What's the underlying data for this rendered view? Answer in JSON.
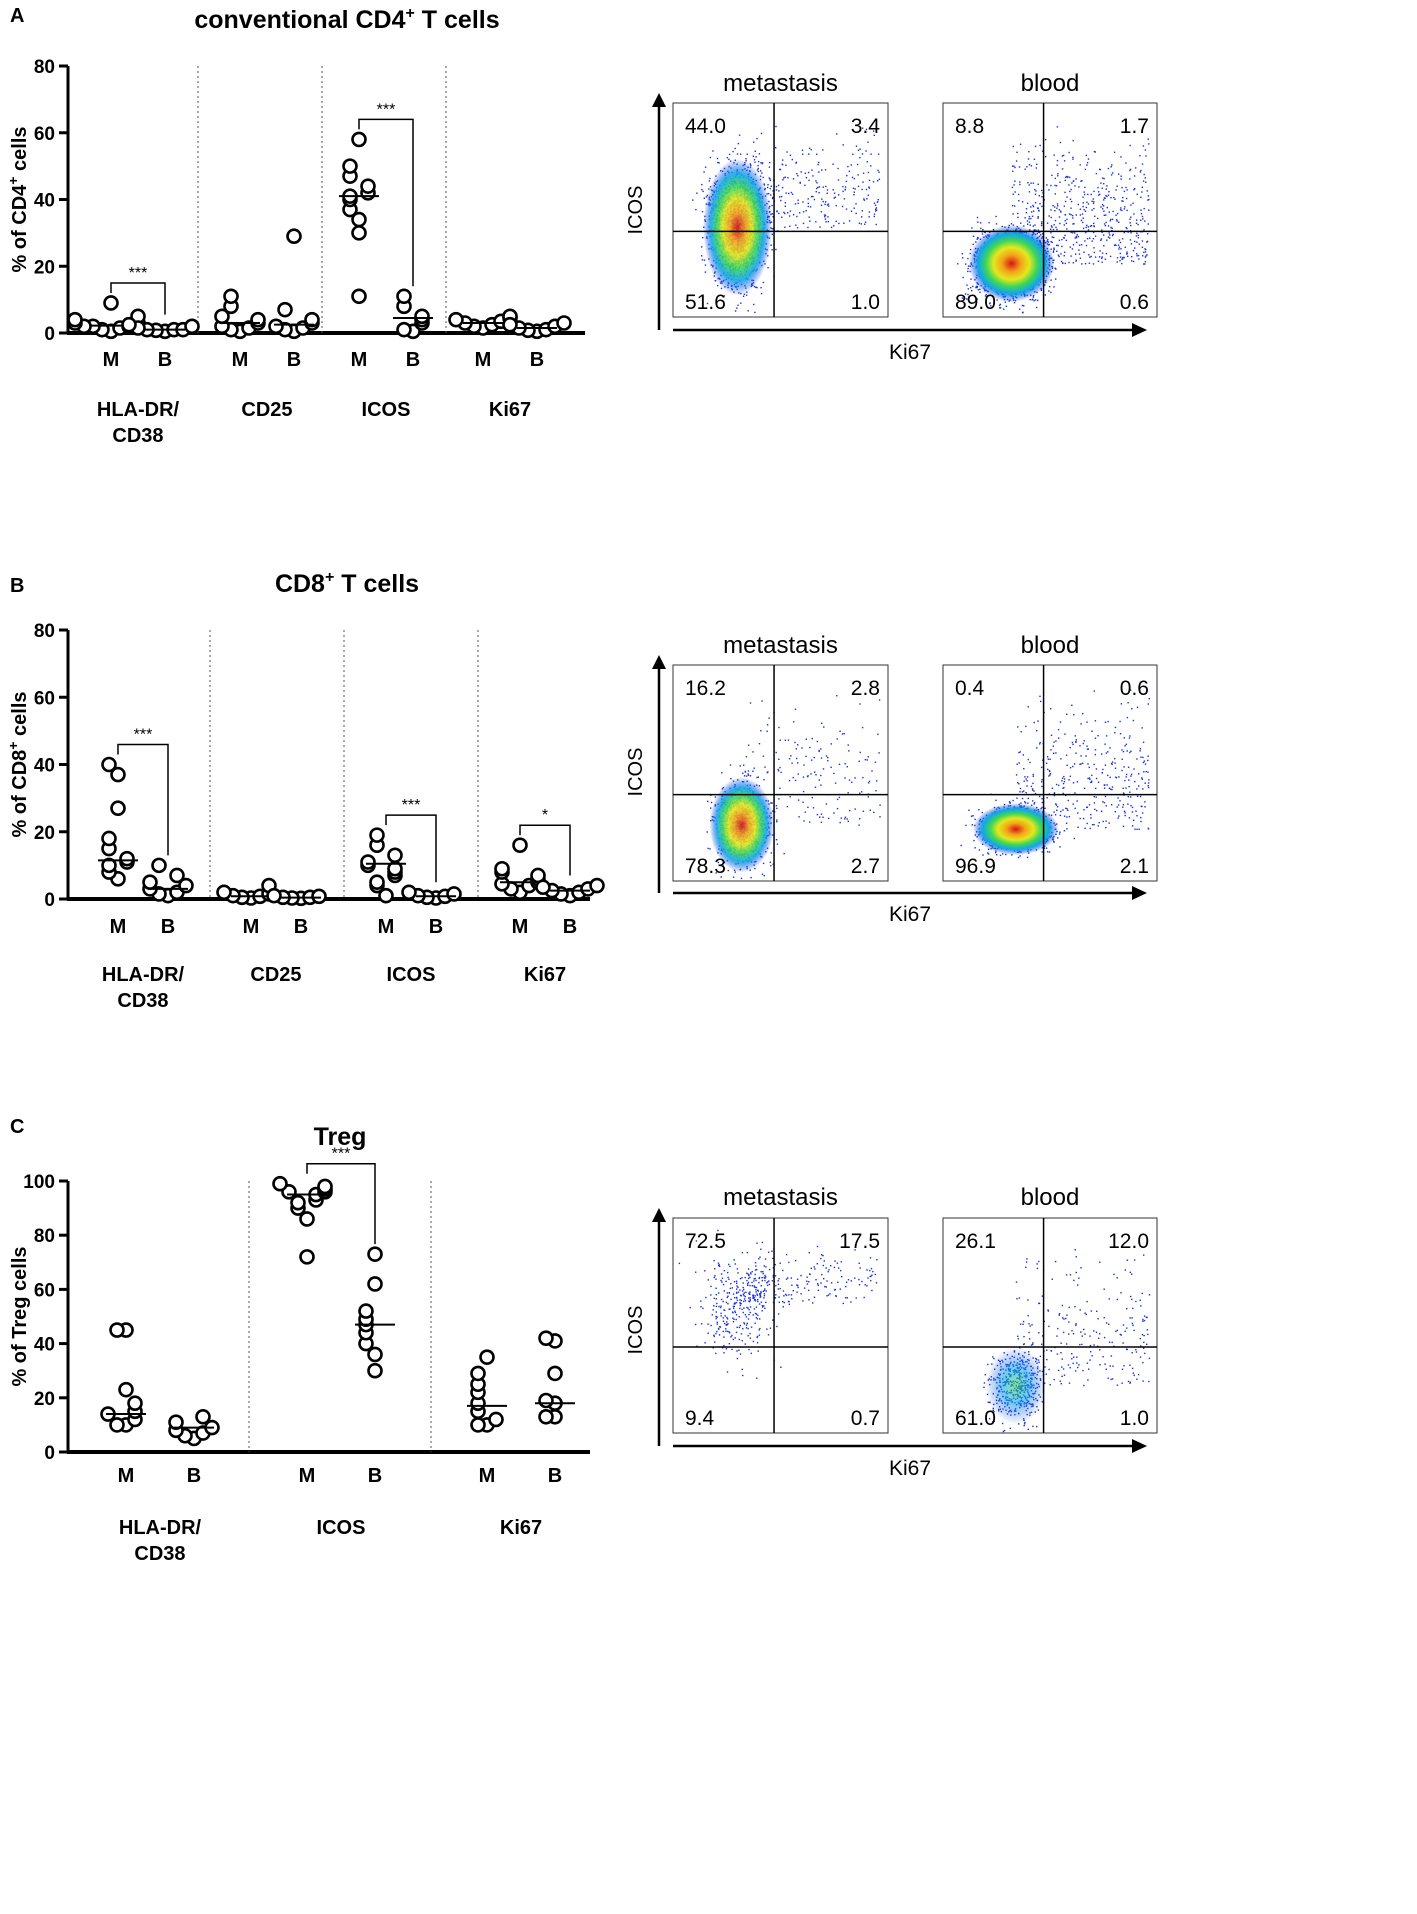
{
  "chart_data": [
    {
      "type": "scatter",
      "panel_label": "A",
      "title": "conventional CD4",
      "title_sup": "+",
      "title_after": " T cells",
      "ylabel_pre": "% of CD4",
      "ylabel_sup": "+",
      "ylabel_post": " cells",
      "ylim": [
        0,
        80
      ],
      "yticks": [
        "0",
        "20",
        "40",
        "60",
        "80"
      ],
      "group_labels": [
        "M",
        "B"
      ],
      "categories": [
        {
          "label_lines": [
            "HLA-DR/",
            "CD38"
          ],
          "M": [
            9,
            5,
            4,
            3,
            3,
            2,
            2,
            2,
            1.5,
            1,
            0.5
          ],
          "B": [
            2.5,
            2,
            1.5,
            1,
            1,
            1,
            0.8,
            0.5
          ],
          "median_M": 2.2,
          "median_B": 1.0,
          "sig": "***"
        },
        {
          "label_lines": [
            "CD25"
          ],
          "M": [
            11,
            8,
            5,
            4,
            3,
            2,
            1.5,
            1,
            0.5
          ],
          "B": [
            29,
            7,
            4,
            3,
            2,
            1.5,
            1,
            0.5
          ],
          "median_M": 3.0,
          "median_B": 2.5,
          "sig": ""
        },
        {
          "label_lines": [
            "ICOS"
          ],
          "M": [
            58,
            50,
            47,
            44,
            42,
            41,
            40,
            37,
            34,
            30,
            11
          ],
          "B": [
            11,
            8,
            5,
            4,
            3,
            1,
            0.5
          ],
          "median_M": 41,
          "median_B": 4.5,
          "sig": "***"
        },
        {
          "label_lines": [
            "Ki67"
          ],
          "M": [
            5,
            4.5,
            4,
            3.5,
            3,
            2.5,
            2,
            1.5
          ],
          "B": [
            3,
            2.5,
            2,
            1.5,
            1,
            0.8,
            0.5
          ],
          "median_M": 3.0,
          "median_B": 1.5,
          "sig": ""
        }
      ],
      "flow_plots": [
        {
          "title": "metastasis",
          "quadrants": {
            "top_left": "44.0",
            "top_right": "3.4",
            "bottom_left": "51.6",
            "bottom_right": "1.0"
          }
        },
        {
          "title": "blood",
          "quadrants": {
            "top_left": "8.8",
            "top_right": "1.7",
            "bottom_left": "89.0",
            "bottom_right": "0.6"
          }
        }
      ],
      "flow_y_axis": "ICOS",
      "flow_x_axis": "Ki67"
    },
    {
      "type": "scatter",
      "panel_label": "B",
      "title": "CD8",
      "title_sup": "+",
      "title_after": " T cells",
      "ylabel_pre": "% of CD8",
      "ylabel_sup": "+",
      "ylabel_post": " cells",
      "ylim": [
        0,
        80
      ],
      "yticks": [
        "0",
        "20",
        "40",
        "60",
        "80"
      ],
      "group_labels": [
        "M",
        "B"
      ],
      "categories": [
        {
          "label_lines": [
            "HLA-DR/",
            "CD38"
          ],
          "M": [
            40,
            37,
            27,
            18,
            15,
            12,
            11,
            10,
            8,
            6
          ],
          "B": [
            10,
            7,
            5,
            4,
            3,
            2,
            1.5,
            1
          ],
          "median_M": 11.5,
          "median_B": 3.0,
          "sig": "***"
        },
        {
          "label_lines": [
            "CD25"
          ],
          "M": [
            4,
            2,
            1.5,
            1,
            0.8,
            0.5,
            0.3
          ],
          "B": [
            1,
            0.8,
            0.5,
            0.5,
            0.3,
            0.2
          ],
          "median_M": 0.8,
          "median_B": 0.4,
          "sig": ""
        },
        {
          "label_lines": [
            "ICOS"
          ],
          "M": [
            19,
            16,
            13,
            11,
            10,
            9,
            8,
            7,
            5,
            4,
            1
          ],
          "B": [
            2,
            1.5,
            1,
            0.8,
            0.5,
            0.3
          ],
          "median_M": 10.5,
          "median_B": 0.8,
          "sig": "***"
        },
        {
          "label_lines": [
            "Ki67"
          ],
          "M": [
            16,
            9,
            8,
            7,
            6,
            5,
            4.5,
            4,
            3,
            2
          ],
          "B": [
            4,
            3.5,
            3,
            2.5,
            2,
            1.5,
            1
          ],
          "median_M": 5.0,
          "median_B": 2.5,
          "sig": "*"
        }
      ],
      "flow_plots": [
        {
          "title": "metastasis",
          "quadrants": {
            "top_left": "16.2",
            "top_right": "2.8",
            "bottom_left": "78.3",
            "bottom_right": "2.7"
          }
        },
        {
          "title": "blood",
          "quadrants": {
            "top_left": "0.4",
            "top_right": "0.6",
            "bottom_left": "96.9",
            "bottom_right": "2.1"
          }
        }
      ],
      "flow_y_axis": "ICOS",
      "flow_x_axis": "Ki67"
    },
    {
      "type": "scatter",
      "panel_label": "C",
      "title": "Treg",
      "title_sup": "",
      "title_after": "",
      "ylabel_pre": "% of Treg cells",
      "ylabel_sup": "",
      "ylabel_post": "",
      "ylim": [
        0,
        100
      ],
      "yticks": [
        "0",
        "20",
        "40",
        "60",
        "80",
        "100"
      ],
      "group_labels": [
        "M",
        "B"
      ],
      "categories": [
        {
          "label_lines": [
            "HLA-DR/",
            "CD38"
          ],
          "M": [
            45,
            45,
            23,
            18,
            15,
            14,
            12,
            10,
            10
          ],
          "B": [
            13,
            11,
            9,
            8,
            7,
            6,
            5
          ],
          "median_M": 14,
          "median_B": 9,
          "sig": ""
        },
        {
          "label_lines": [
            "ICOS"
          ],
          "M": [
            99,
            98,
            97,
            96,
            96,
            95,
            93,
            92,
            90,
            86,
            72
          ],
          "B": [
            73,
            62,
            52,
            49,
            47,
            44,
            40,
            36,
            30
          ],
          "median_M": 95,
          "median_B": 47,
          "sig": "***"
        },
        {
          "label_lines": [
            "Ki67"
          ],
          "M": [
            35,
            29,
            25,
            22,
            18,
            15,
            12,
            10,
            10
          ],
          "B": [
            42,
            41,
            29,
            19,
            18,
            13,
            13
          ],
          "median_M": 17,
          "median_B": 18,
          "sig": ""
        }
      ],
      "flow_plots": [
        {
          "title": "metastasis",
          "quadrants": {
            "top_left": "72.5",
            "top_right": "17.5",
            "bottom_left": "9.4",
            "bottom_right": "0.7"
          }
        },
        {
          "title": "blood",
          "quadrants": {
            "top_left": "26.1",
            "top_right": "12.0",
            "bottom_left": "61.0",
            "bottom_right": "1.0"
          }
        }
      ],
      "flow_y_axis": "ICOS",
      "flow_x_axis": "Ki67"
    }
  ]
}
